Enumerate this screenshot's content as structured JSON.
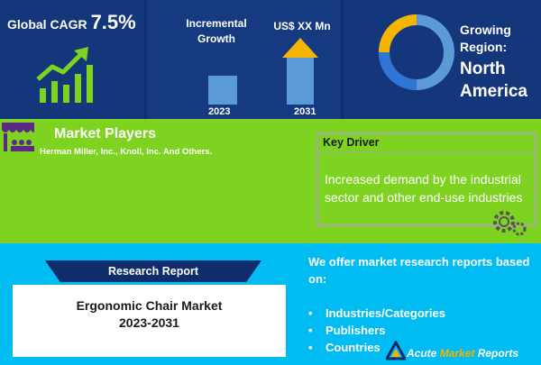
{
  "stats": {
    "cagr_label": "Global CAGR",
    "cagr_value": "7.5%",
    "incremental_label": "Incremental Growth",
    "usd_label": "US$ XX Mn",
    "year_start": "2023",
    "year_end": "2031",
    "region_label": "Growing Region:",
    "region_name": "North America"
  },
  "players": {
    "title": "Market Players",
    "list": "Herman Miller, Inc., Knoll, Inc. And Others."
  },
  "driver": {
    "title": "Key Driver",
    "text": "Increased demand by the industrial sector and other end-use industries"
  },
  "report": {
    "banner": "Research Report",
    "title_line1": "Ergonomic Chair Market",
    "title_line2": "2023-2031"
  },
  "offer": {
    "text": "We offer market research reports based on:",
    "items": [
      "Industries/Categories",
      "Publishers",
      "Countries"
    ]
  },
  "logo": {
    "word1": "Acute",
    "word2": "Market",
    "word3": "Reports"
  },
  "colors": {
    "navy": "#0f2d6b",
    "green": "#7ed321",
    "cyan": "#00bcf2",
    "accent": "#f4b400",
    "bar": "#5b9bd5"
  }
}
